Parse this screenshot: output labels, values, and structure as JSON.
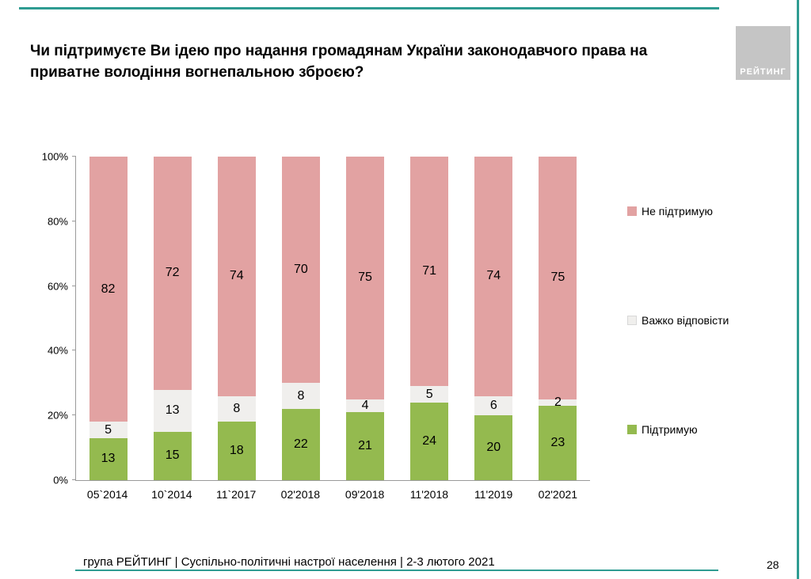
{
  "accent_color": "#2f9c92",
  "logo": {
    "text": "РЕЙТИНГ"
  },
  "footer": {
    "text": "група РЕЙТИНГ | Суспільно-політичні настрої населення  | 2-3 лютого 2021",
    "page_number": "28"
  },
  "chart_data": {
    "type": "bar",
    "stacked": true,
    "title": "Чи підтримуєте Ви ідею про надання громадянам України законодавчого права на приватне володіння вогнепальною зброєю?",
    "categories": [
      "05`2014",
      "10`2014",
      "11`2017",
      "02'2018",
      "09'2018",
      "11'2018",
      "11'2019",
      "02'2021"
    ],
    "series": [
      {
        "name": "Підтримую",
        "color": "#94ba4f",
        "values": [
          13,
          15,
          18,
          22,
          21,
          24,
          20,
          23
        ]
      },
      {
        "name": "Важко відповісти",
        "color": "#f0efed",
        "values": [
          5,
          13,
          8,
          8,
          4,
          5,
          6,
          2
        ]
      },
      {
        "name": "Не підтримую",
        "color": "#e2a2a2",
        "values": [
          82,
          72,
          74,
          70,
          75,
          71,
          74,
          75
        ]
      }
    ],
    "ylim": [
      0,
      100
    ],
    "yticks": [
      "0%",
      "20%",
      "40%",
      "60%",
      "80%",
      "100%"
    ],
    "legend_position": "right",
    "legend_order": [
      "Не підтримую",
      "Важко відповісти",
      "Підтримую"
    ],
    "grid": false
  }
}
